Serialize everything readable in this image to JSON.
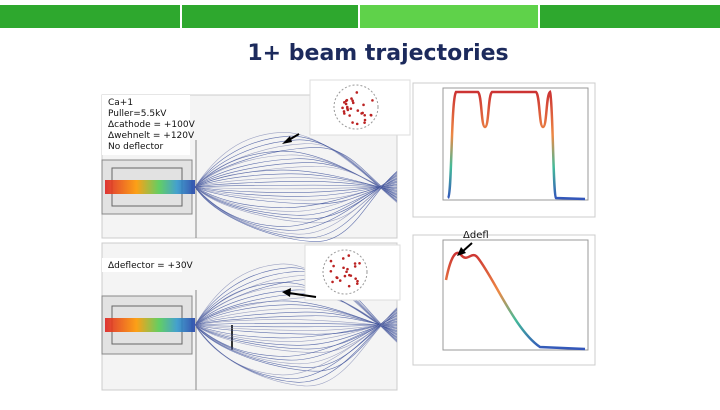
{
  "title": "1+ beam trajectories",
  "panels": [
    {
      "labels": [
        "Ca+1",
        "Puller=5.5kV",
        "Δcathode = +100V",
        "Δwehnelt = +120V",
        "No deflector"
      ]
    },
    {
      "labels": [
        "Δdeflector = +30V"
      ]
    }
  ],
  "annotation": "Δdefl"
}
